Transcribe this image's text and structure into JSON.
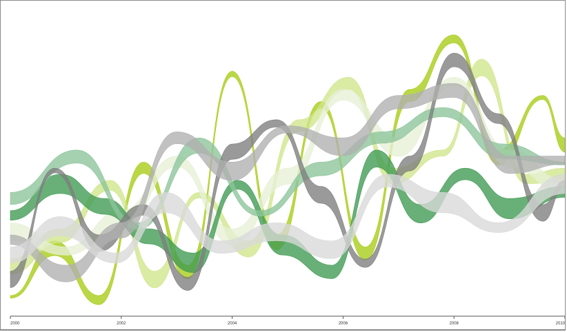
{
  "chart_data": {
    "type": "area",
    "xlim": [
      2000,
      2010
    ],
    "x_ticks": [
      "2000",
      "2002",
      "2004",
      "2006",
      "2008",
      "2010"
    ],
    "grid": false,
    "colors": {
      "lime": "#a6cc14",
      "lime_light": "#cfe58a",
      "pale": "#e7efd6",
      "green": "#3f9a52",
      "green_light": "#8cc49a",
      "gray_dark": "#7d7d7d",
      "gray": "#b0b0b0",
      "gray_light": "#d9d9d9"
    },
    "series": [
      {
        "color": "lime",
        "x": [
          2000,
          2000.8,
          2001.6,
          2002.4,
          2003.2,
          2004,
          2004.8,
          2005.6,
          2006.4,
          2007.2,
          2008,
          2008.8,
          2009.6,
          2010
        ],
        "y": [
          0.0,
          0.9,
          0.0,
          2.2,
          0.5,
          3.7,
          1.0,
          3.2,
          0.8,
          3.4,
          4.3,
          2.4,
          3.3,
          2.6
        ]
      },
      {
        "color": "lime_light",
        "x": [
          2000,
          2000.9,
          2001.8,
          2002.6,
          2003.4,
          2004.3,
          2005.2,
          2006.1,
          2006.9,
          2007.8,
          2008.5,
          2009.3,
          2010
        ],
        "y": [
          0.6,
          1.1,
          1.9,
          0.4,
          1.7,
          0.9,
          2.9,
          3.6,
          2.1,
          2.4,
          3.9,
          2.0,
          2.1
        ]
      },
      {
        "color": "pale",
        "x": [
          2000,
          2001,
          2002,
          2003,
          2004,
          2005,
          2006,
          2007,
          2008,
          2009,
          2010
        ],
        "y": [
          1.2,
          0.8,
          1.4,
          2.3,
          1.1,
          2.1,
          3.4,
          2.6,
          3.6,
          2.4,
          1.9
        ]
      },
      {
        "color": "green",
        "x": [
          2000,
          2000.9,
          2001.7,
          2002.5,
          2003.3,
          2004.1,
          2004.9,
          2005.8,
          2006.6,
          2007.4,
          2008.2,
          2009,
          2010
        ],
        "y": [
          1.4,
          2.0,
          1.6,
          1.1,
          0.7,
          1.9,
          1.0,
          0.5,
          2.4,
          1.5,
          2.1,
          1.6,
          1.8
        ]
      },
      {
        "color": "green_light",
        "x": [
          2000,
          2001.2,
          2002.3,
          2003.4,
          2004.5,
          2005.6,
          2006.7,
          2007.8,
          2008.9,
          2010
        ],
        "y": [
          1.7,
          2.4,
          1.2,
          2.6,
          1.4,
          2.2,
          2.7,
          3.1,
          2.5,
          2.2
        ]
      },
      {
        "color": "gray_dark",
        "x": [
          2000,
          2000.8,
          2001.6,
          2002.4,
          2003.2,
          2004,
          2004.8,
          2005.6,
          2006.4,
          2007.2,
          2008,
          2008.8,
          2009.6,
          2010
        ],
        "y": [
          0.4,
          2.1,
          1.0,
          1.5,
          0.3,
          2.5,
          2.9,
          1.8,
          0.6,
          2.3,
          4.0,
          3.0,
          1.5,
          1.9
        ]
      },
      {
        "color": "gray",
        "x": [
          2000,
          2001,
          2002,
          2003,
          2004,
          2005,
          2006,
          2007,
          2008,
          2009,
          2010
        ],
        "y": [
          1.0,
          0.5,
          1.2,
          2.7,
          2.2,
          2.8,
          2.6,
          3.3,
          3.5,
          2.3,
          2.3
        ]
      },
      {
        "color": "gray_light",
        "x": [
          2000,
          2000.9,
          2001.9,
          2002.8,
          2003.8,
          2004.8,
          2005.8,
          2006.8,
          2007.8,
          2008.8,
          2010
        ],
        "y": [
          0.8,
          1.3,
          0.7,
          1.7,
          0.9,
          1.2,
          0.9,
          2.0,
          1.7,
          1.2,
          2.0
        ]
      }
    ]
  }
}
